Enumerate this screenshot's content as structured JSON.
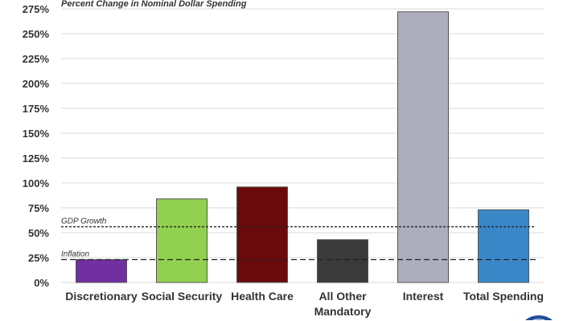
{
  "chart_data": {
    "type": "bar",
    "title": "Percent Change in Nominal Dollar Spending",
    "xlabel": "",
    "ylabel": "",
    "ylim": [
      0,
      275
    ],
    "yticks": [
      0,
      25,
      50,
      75,
      100,
      125,
      150,
      175,
      200,
      225,
      250,
      275
    ],
    "ytick_labels": [
      "0%",
      "25%",
      "50%",
      "75%",
      "100%",
      "125%",
      "150%",
      "175%",
      "200%",
      "225%",
      "250%",
      "275%"
    ],
    "grid": true,
    "categories": [
      "Discretionary",
      "Social Security",
      "Health Care",
      "All Other Mandatory",
      "Interest",
      "Total Spending"
    ],
    "category_lines": [
      [
        "Discretionary"
      ],
      [
        "Social Security"
      ],
      [
        "Health Care"
      ],
      [
        "All Other",
        "Mandatory"
      ],
      [
        "Interest"
      ],
      [
        "Total Spending"
      ]
    ],
    "values": [
      23,
      84,
      96,
      43,
      272,
      73
    ],
    "colors": [
      "#7030a0",
      "#92d050",
      "#6b0a0a",
      "#3a3a3a",
      "#adadbd",
      "#3a87c8"
    ],
    "reference_lines": [
      {
        "label": "GDP Growth",
        "value": 56,
        "style": "dotted"
      },
      {
        "label": "Inflation",
        "value": 23,
        "style": "dashed"
      }
    ]
  }
}
